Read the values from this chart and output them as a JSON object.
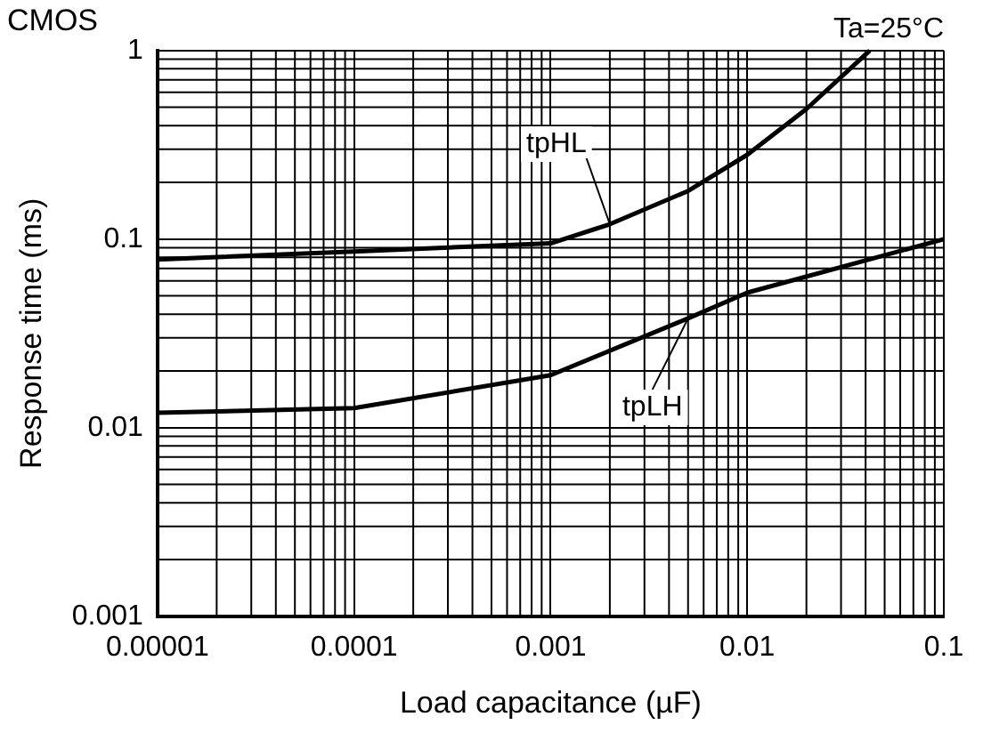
{
  "chart_data": {
    "type": "line",
    "title": "CMOS",
    "xlabel": "Load capacitance (µF)",
    "ylabel": "Response time (ms)",
    "log": "xy",
    "grid": true,
    "legend": false,
    "marker": "none",
    "line_style": "solid",
    "xlim": [
      1e-05,
      0.1
    ],
    "ylim": [
      0.001,
      1
    ],
    "xticks": [
      {
        "value": 1e-05,
        "label": "0.00001"
      },
      0.0001,
      0.001,
      0.01,
      0.1
    ],
    "yticks": [
      0.001,
      0.01,
      0.1,
      1
    ],
    "annotations": [
      "Ta=25°C",
      {
        "text": "tpHL",
        "x": 0.002,
        "y": 0.12
      },
      {
        "text": "tpLH",
        "x": 0.005,
        "y": 0.038
      }
    ],
    "series": [
      {
        "color": "#000000",
        "x": [
          1e-05,
          0.0001,
          0.001,
          0.002,
          0.005,
          0.01,
          0.02,
          0.042
        ],
        "values": [
          0.078,
          0.086,
          0.095,
          0.12,
          0.18,
          0.28,
          0.49,
          1
        ]
      },
      {
        "color": "#000000",
        "x": [
          1e-05,
          0.0001,
          0.001,
          0.005,
          0.01,
          0.1
        ],
        "values": [
          0.012,
          0.0127,
          0.019,
          0.038,
          0.052,
          0.1
        ]
      }
    ]
  }
}
